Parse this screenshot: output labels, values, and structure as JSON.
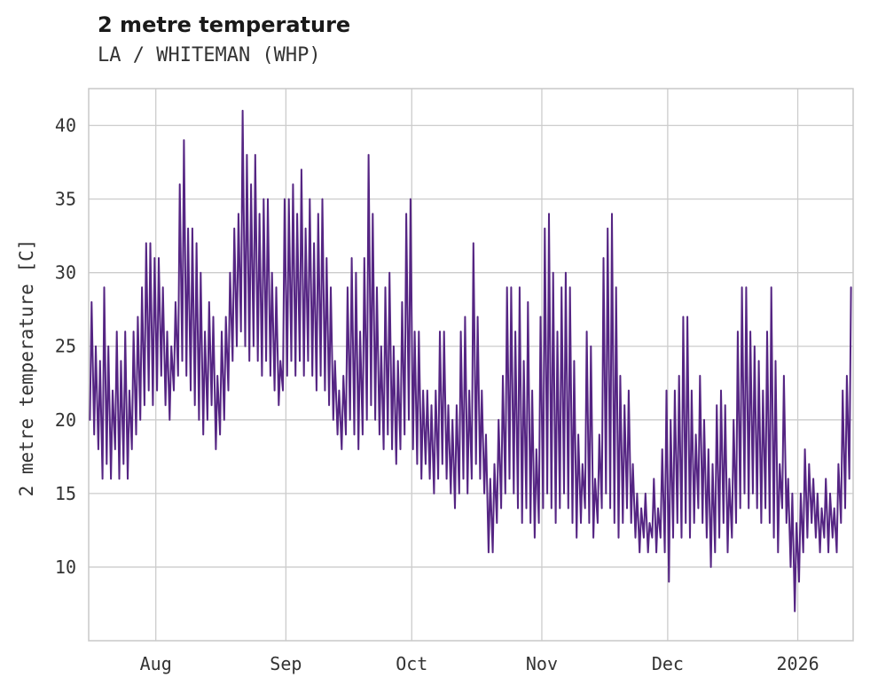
{
  "header": {
    "title": "2 metre temperature",
    "subtitle": "LA / WHITEMAN (WHP)"
  },
  "colors": {
    "line": "#552583",
    "grid": "#cccccc",
    "border": "#c8c8c8",
    "axis_text": "#333333",
    "title_text": "#1a1a1a",
    "background": "#ffffff"
  },
  "chart_data": {
    "type": "line",
    "title": "2 metre temperature",
    "subtitle": "LA / WHITEMAN (WHP)",
    "xlabel": "",
    "ylabel": "2 metre temperature [C]",
    "ylim": [
      5,
      42.5
    ],
    "yticks": [
      10,
      15,
      20,
      25,
      30,
      35,
      40
    ],
    "x_range": [
      0,
      182.2
    ],
    "x_ticks": {
      "positions": [
        16,
        47,
        77,
        108,
        138,
        169
      ],
      "labels": [
        "Aug",
        "Sep",
        "Oct",
        "Nov",
        "Dec",
        "2026"
      ]
    },
    "grid": true,
    "legend": "none",
    "series": [
      {
        "name": "2 metre temperature [C]",
        "sampling": "daily min/max pairs approximating the hourly zigzag trace, day 0 at left edge",
        "daily_min": [
          20,
          19,
          18,
          16,
          17,
          16,
          18,
          16,
          17,
          16,
          18,
          19,
          20,
          21,
          22,
          21,
          22,
          23,
          21,
          20,
          22,
          23,
          24,
          23,
          22,
          21,
          20,
          19,
          20,
          21,
          18,
          19,
          20,
          22,
          24,
          25,
          26,
          25,
          24,
          25,
          24,
          23,
          24,
          23,
          22,
          21,
          22,
          23,
          24,
          23,
          24,
          23,
          24,
          23,
          22,
          23,
          22,
          21,
          20,
          19,
          18,
          19,
          20,
          19,
          18,
          19,
          20,
          21,
          20,
          19,
          18,
          19,
          18,
          17,
          18,
          19,
          20,
          18,
          17,
          16,
          17,
          16,
          15,
          16,
          17,
          16,
          15,
          14,
          15,
          16,
          15,
          16,
          17,
          16,
          15,
          11,
          11,
          13,
          14,
          15,
          16,
          15,
          14,
          13,
          14,
          13,
          12,
          13,
          14,
          15,
          14,
          13,
          14,
          15,
          14,
          13,
          12,
          13,
          14,
          13,
          12,
          13,
          14,
          15,
          14,
          13,
          12,
          13,
          14,
          13,
          12,
          11,
          12,
          11,
          12,
          11,
          12,
          11,
          9,
          12,
          13,
          12,
          13,
          12,
          13,
          14,
          13,
          12,
          10,
          11,
          12,
          13,
          11,
          12,
          13,
          14,
          15,
          14,
          15,
          14,
          13,
          14,
          13,
          12,
          11,
          14,
          13,
          10,
          7,
          9,
          11,
          12,
          13,
          12,
          11,
          12,
          11,
          12,
          11,
          13,
          14,
          16
        ],
        "daily_max": [
          28,
          25,
          24,
          29,
          25,
          22,
          26,
          24,
          26,
          22,
          26,
          27,
          29,
          32,
          32,
          31,
          31,
          29,
          26,
          25,
          28,
          36,
          39,
          33,
          33,
          32,
          30,
          26,
          28,
          27,
          23,
          26,
          27,
          30,
          33,
          34,
          41,
          38,
          36,
          38,
          34,
          35,
          35,
          30,
          29,
          24,
          35,
          35,
          36,
          34,
          37,
          33,
          35,
          32,
          34,
          35,
          31,
          29,
          24,
          22,
          23,
          29,
          31,
          30,
          26,
          31,
          38,
          34,
          29,
          25,
          29,
          30,
          25,
          24,
          28,
          34,
          35,
          26,
          26,
          22,
          22,
          21,
          22,
          26,
          26,
          21,
          20,
          21,
          26,
          27,
          22,
          32,
          27,
          22,
          19,
          16,
          17,
          20,
          23,
          29,
          29,
          26,
          29,
          24,
          28,
          22,
          18,
          27,
          33,
          34,
          30,
          26,
          29,
          30,
          29,
          24,
          19,
          17,
          26,
          25,
          16,
          19,
          31,
          33,
          34,
          29,
          23,
          21,
          22,
          17,
          15,
          14,
          15,
          13,
          16,
          14,
          18,
          22,
          20,
          22,
          23,
          27,
          27,
          22,
          19,
          23,
          20,
          18,
          17,
          21,
          22,
          21,
          16,
          20,
          26,
          29,
          29,
          26,
          25,
          24,
          22,
          26,
          29,
          24,
          17,
          23,
          16,
          15,
          13,
          15,
          18,
          17,
          16,
          15,
          14,
          16,
          15,
          14,
          17,
          22,
          23,
          29
        ]
      }
    ]
  }
}
